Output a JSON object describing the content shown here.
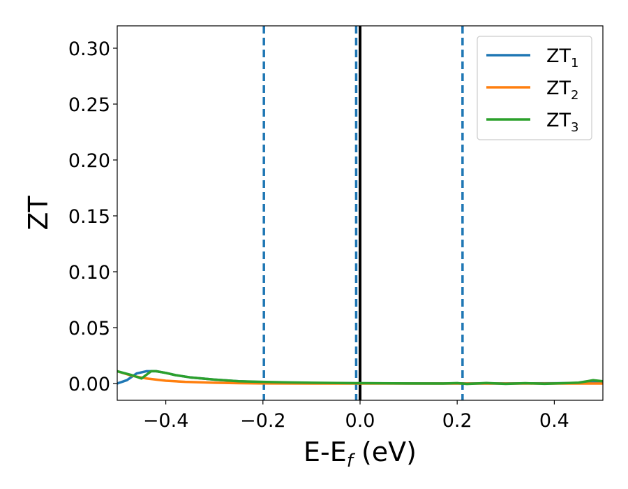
{
  "chart_data": {
    "type": "line",
    "xlabel": "E-E",
    "xlabel_sub": "f",
    "xlabel_unit": " (eV)",
    "ylabel": "ZT",
    "xlim": [
      -0.5,
      0.5
    ],
    "ylim": [
      -0.015,
      0.32
    ],
    "xticks": [
      -0.4,
      -0.2,
      0.0,
      0.2,
      0.4
    ],
    "xtick_labels": [
      "−0.4",
      "−0.2",
      "0.0",
      "0.2",
      "0.4"
    ],
    "yticks": [
      0.0,
      0.05,
      0.1,
      0.15,
      0.2,
      0.25,
      0.3
    ],
    "ytick_labels": [
      "0.00",
      "0.05",
      "0.10",
      "0.15",
      "0.20",
      "0.25",
      "0.30"
    ],
    "legend_position": "top-right",
    "vlines": [
      {
        "x": -0.198,
        "style": "dashed",
        "color": "#1f77b4"
      },
      {
        "x": -0.008,
        "style": "dashed",
        "color": "#1f77b4"
      },
      {
        "x": 0.0,
        "style": "solid",
        "color": "#000000"
      },
      {
        "x": 0.211,
        "style": "dashed",
        "color": "#1f77b4"
      }
    ],
    "series": [
      {
        "name": "ZT",
        "name_sub": "1",
        "color": "#1f77b4",
        "x": [
          -0.5,
          -0.48,
          -0.46,
          -0.44,
          -0.42,
          -0.4,
          -0.38,
          -0.35,
          -0.3,
          -0.25,
          -0.2,
          -0.1,
          0.0,
          0.1,
          0.2,
          0.3,
          0.4,
          0.45,
          0.48,
          0.5
        ],
        "y": [
          0.0,
          0.003,
          0.009,
          0.011,
          0.011,
          0.0095,
          0.0075,
          0.0055,
          0.0035,
          0.002,
          0.0012,
          0.0005,
          0.0002,
          0.0001,
          0.0001,
          0.0001,
          0.0002,
          0.0004,
          0.0008,
          0.001
        ]
      },
      {
        "name": "ZT",
        "name_sub": "2",
        "color": "#ff7f0e",
        "x": [
          -0.5,
          -0.47,
          -0.44,
          -0.4,
          -0.36,
          -0.3,
          -0.25,
          -0.2,
          -0.1,
          0.0,
          0.1,
          0.2,
          0.3,
          0.4,
          0.5
        ],
        "y": [
          0.011,
          0.007,
          0.0045,
          0.0025,
          0.0015,
          0.0007,
          0.0003,
          0.0001,
          0.0,
          0.0,
          0.0,
          0.0,
          0.0,
          0.0,
          0.0
        ]
      },
      {
        "name": "ZT",
        "name_sub": "3",
        "color": "#2ca02c",
        "x": [
          -0.5,
          -0.47,
          -0.45,
          -0.43,
          -0.42,
          -0.4,
          -0.38,
          -0.35,
          -0.3,
          -0.25,
          -0.2,
          -0.15,
          -0.1,
          0.0,
          0.1,
          0.17,
          0.2,
          0.22,
          0.26,
          0.3,
          0.34,
          0.38,
          0.42,
          0.45,
          0.47,
          0.48,
          0.5
        ],
        "y": [
          0.011,
          0.0075,
          0.0045,
          0.011,
          0.011,
          0.0095,
          0.0075,
          0.0055,
          0.0035,
          0.002,
          0.0015,
          0.001,
          0.0007,
          0.0003,
          0.0001,
          0.0,
          0.0004,
          -0.0004,
          0.0005,
          -0.0003,
          0.0003,
          -0.0002,
          0.0003,
          0.0008,
          0.0022,
          0.003,
          0.002
        ]
      }
    ]
  }
}
